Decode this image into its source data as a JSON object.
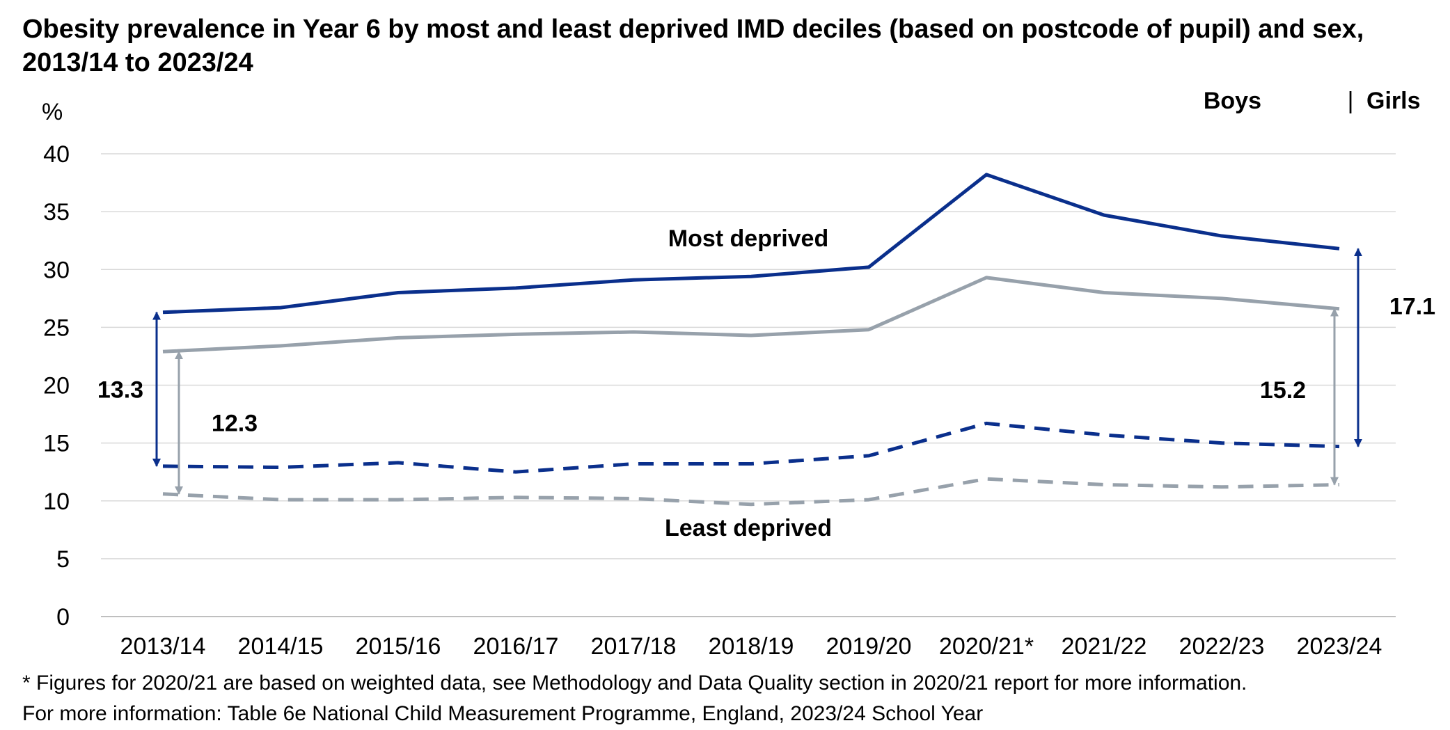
{
  "title": "Obesity prevalence in Year 6 by most and least deprived IMD deciles (based on postcode of pupil) and sex, 2013/14 to 2023/24",
  "legend": {
    "boys": "Boys",
    "separator": "|",
    "girls": "Girls"
  },
  "colors": {
    "boys": "#0A2F8C",
    "girls": "#97A1AB",
    "grid": "#D9D9D9",
    "text": "#000000"
  },
  "chart_data": {
    "type": "line",
    "title": "Obesity prevalence in Year 6 by most and least deprived IMD deciles (based on postcode of pupil) and sex, 2013/14 to 2023/24",
    "ylabel": "%",
    "xlabel": "",
    "ylim": [
      0,
      40
    ],
    "yticks": [
      0,
      5,
      10,
      15,
      20,
      25,
      30,
      35,
      40
    ],
    "grid": true,
    "legend_position": "top-right",
    "categories": [
      "2013/14",
      "2014/15",
      "2015/16",
      "2016/17",
      "2017/18",
      "2018/19",
      "2019/20",
      "2020/21*",
      "2021/22",
      "2022/23",
      "2023/24"
    ],
    "series": [
      {
        "name": "Boys",
        "group": "Most deprived",
        "style": "solid",
        "color": "#0A2F8C",
        "values": [
          26.3,
          26.7,
          28.0,
          28.4,
          29.1,
          29.4,
          30.2,
          38.2,
          34.7,
          32.9,
          31.8
        ]
      },
      {
        "name": "Girls",
        "group": "Most deprived",
        "style": "solid",
        "color": "#97A1AB",
        "values": [
          22.9,
          23.4,
          24.1,
          24.4,
          24.6,
          24.3,
          24.8,
          29.3,
          28.0,
          27.5,
          26.6
        ]
      },
      {
        "name": "Boys",
        "group": "Least deprived",
        "style": "dashed",
        "color": "#0A2F8C",
        "values": [
          13.0,
          12.9,
          13.3,
          12.5,
          13.2,
          13.2,
          13.9,
          16.7,
          15.7,
          15.0,
          14.7
        ]
      },
      {
        "name": "Girls",
        "group": "Least deprived",
        "style": "dashed",
        "color": "#97A1AB",
        "values": [
          10.6,
          10.1,
          10.1,
          10.3,
          10.2,
          9.7,
          10.1,
          11.9,
          11.4,
          11.2,
          11.4
        ]
      }
    ],
    "annotations": {
      "most_deprived": "Most deprived",
      "least_deprived": "Least deprived",
      "gaps": [
        {
          "label": "13.3",
          "category": "2013/14",
          "series": "Boys",
          "from": 26.3,
          "to": 13.0
        },
        {
          "label": "12.3",
          "category": "2013/14",
          "series": "Girls",
          "from": 22.9,
          "to": 10.6
        },
        {
          "label": "17.1",
          "category": "2023/24",
          "series": "Boys",
          "from": 31.8,
          "to": 14.7
        },
        {
          "label": "15.2",
          "category": "2023/24",
          "series": "Girls",
          "from": 26.6,
          "to": 11.4
        }
      ]
    }
  },
  "footnotes": [
    "* Figures for 2020/21 are based on weighted data, see Methodology and Data Quality section in 2020/21 report for more information.",
    "For more information: Table 6e National Child Measurement Programme, England, 2023/24 School Year"
  ]
}
